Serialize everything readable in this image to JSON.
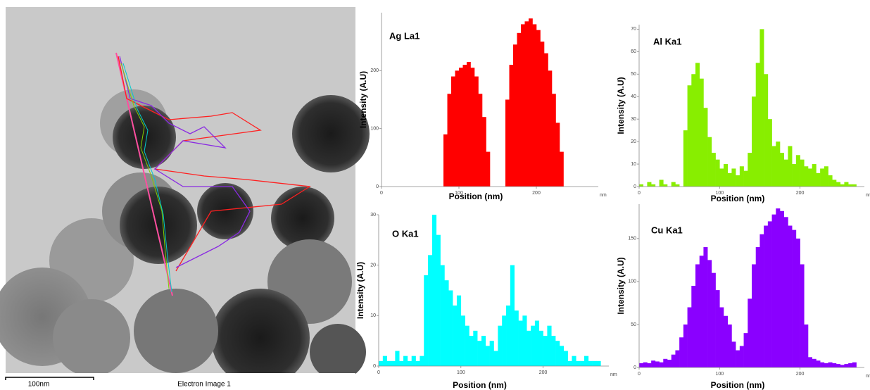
{
  "image": {
    "scale_label": "100nm",
    "caption": "Electron Image 1"
  },
  "chart_data": [
    {
      "type": "histogram",
      "title": "Ag La1",
      "xlabel": "Position (nm)",
      "ylabel": "Intensity (A.U)",
      "x_unit": "nm",
      "color": "#ff0000",
      "bins": [
        0,
        5,
        10,
        15,
        20,
        25,
        30,
        35,
        40,
        45,
        50,
        55,
        60,
        65,
        70,
        75,
        80,
        85,
        90,
        95,
        100,
        105,
        110,
        115,
        120,
        125,
        130,
        135,
        140,
        145,
        150,
        155,
        160,
        165,
        170,
        175,
        180,
        185,
        190,
        195,
        200,
        205,
        210,
        215,
        220,
        225,
        230,
        235,
        240,
        245,
        250,
        255,
        260,
        265,
        270
      ],
      "values": [
        0,
        0,
        0,
        0,
        0,
        0,
        0,
        0,
        0,
        0,
        0,
        0,
        0,
        0,
        0,
        0,
        90,
        160,
        190,
        200,
        205,
        210,
        215,
        205,
        190,
        160,
        120,
        60,
        0,
        0,
        0,
        0,
        150,
        210,
        245,
        265,
        280,
        285,
        290,
        280,
        270,
        250,
        230,
        200,
        160,
        110,
        60,
        0,
        0,
        0,
        0,
        0,
        0,
        0
      ],
      "xlim": [
        0,
        280
      ],
      "xticks": [
        0,
        100,
        200
      ],
      "ylim": [
        0,
        300
      ],
      "yticks": [
        0,
        100,
        200
      ]
    },
    {
      "type": "histogram",
      "title": "Al Ka1",
      "xlabel": "Position (nm)",
      "ylabel": "Intensity (A.U)",
      "x_unit": "nm",
      "color": "#88ee00",
      "bins": [
        0,
        5,
        10,
        15,
        20,
        25,
        30,
        35,
        40,
        45,
        50,
        55,
        60,
        65,
        70,
        75,
        80,
        85,
        90,
        95,
        100,
        105,
        110,
        115,
        120,
        125,
        130,
        135,
        140,
        145,
        150,
        155,
        160,
        165,
        170,
        175,
        180,
        185,
        190,
        195,
        200,
        205,
        210,
        215,
        220,
        225,
        230,
        235,
        240,
        245,
        250,
        255,
        260,
        265,
        270
      ],
      "values": [
        1,
        0,
        2,
        1,
        0,
        3,
        1,
        0,
        2,
        1,
        0,
        25,
        45,
        50,
        55,
        48,
        35,
        22,
        15,
        12,
        8,
        10,
        6,
        8,
        5,
        9,
        7,
        15,
        40,
        55,
        70,
        50,
        30,
        18,
        20,
        15,
        12,
        18,
        10,
        14,
        12,
        9,
        8,
        10,
        6,
        8,
        9,
        5,
        3,
        2,
        1,
        2,
        1,
        1
      ],
      "xlim": [
        0,
        280
      ],
      "xticks": [
        0,
        100,
        200
      ],
      "ylim": [
        0,
        72
      ],
      "yticks": [
        0,
        10,
        20,
        30,
        40,
        50,
        60,
        70
      ]
    },
    {
      "type": "histogram",
      "title": "O Ka1",
      "xlabel": "Position (nm)",
      "ylabel": "Intensity (A.U)",
      "x_unit": "nm",
      "color": "#00ffff",
      "bins": [
        0,
        5,
        10,
        15,
        20,
        25,
        30,
        35,
        40,
        45,
        50,
        55,
        60,
        65,
        70,
        75,
        80,
        85,
        90,
        95,
        100,
        105,
        110,
        115,
        120,
        125,
        130,
        135,
        140,
        145,
        150,
        155,
        160,
        165,
        170,
        175,
        180,
        185,
        190,
        195,
        200,
        205,
        210,
        215,
        220,
        225,
        230,
        235,
        240,
        245,
        250,
        255,
        260,
        265,
        270
      ],
      "values": [
        1,
        2,
        1,
        1,
        3,
        1,
        2,
        1,
        2,
        1,
        2,
        18,
        22,
        30,
        26,
        20,
        17,
        15,
        12,
        14,
        10,
        8,
        6,
        7,
        5,
        6,
        4,
        5,
        3,
        8,
        10,
        12,
        20,
        11,
        9,
        10,
        7,
        8,
        9,
        7,
        6,
        8,
        6,
        5,
        4,
        3,
        1,
        2,
        1,
        1,
        2,
        1,
        1,
        1
      ],
      "xlim": [
        0,
        280
      ],
      "xticks": [
        0,
        100,
        200
      ],
      "ylim": [
        0,
        30
      ],
      "yticks": [
        0,
        10,
        20,
        30
      ]
    },
    {
      "type": "histogram",
      "title": "Cu Ka1",
      "xlabel": "Position (nm)",
      "ylabel": "Intensity (A.U)",
      "x_unit": "nm",
      "color": "#8a00ff",
      "bins": [
        0,
        5,
        10,
        15,
        20,
        25,
        30,
        35,
        40,
        45,
        50,
        55,
        60,
        65,
        70,
        75,
        80,
        85,
        90,
        95,
        100,
        105,
        110,
        115,
        120,
        125,
        130,
        135,
        140,
        145,
        150,
        155,
        160,
        165,
        170,
        175,
        180,
        185,
        190,
        195,
        200,
        205,
        210,
        215,
        220,
        225,
        230,
        235,
        240,
        245,
        250,
        255,
        260,
        265,
        270
      ],
      "values": [
        5,
        6,
        5,
        8,
        7,
        6,
        10,
        9,
        15,
        20,
        35,
        50,
        70,
        95,
        120,
        130,
        140,
        125,
        110,
        90,
        70,
        60,
        50,
        30,
        20,
        25,
        40,
        80,
        120,
        140,
        155,
        165,
        170,
        178,
        185,
        182,
        175,
        165,
        160,
        150,
        120,
        50,
        12,
        10,
        8,
        6,
        5,
        6,
        5,
        4,
        3,
        4,
        5,
        6
      ],
      "xlim": [
        0,
        280
      ],
      "xticks": [
        0,
        100,
        200
      ],
      "ylim": [
        0,
        190
      ],
      "yticks": [
        0,
        50,
        100,
        150
      ]
    }
  ]
}
